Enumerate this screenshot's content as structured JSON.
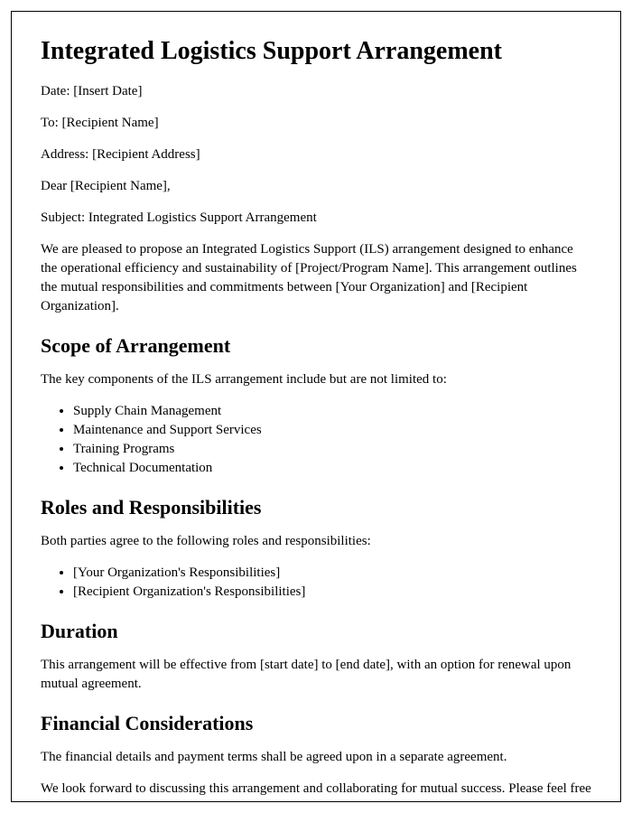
{
  "title": "Integrated Logistics Support Arrangement",
  "date_label": "Date: [Insert Date]",
  "to_label": "To: [Recipient Name]",
  "address_label": "Address: [Recipient Address]",
  "salutation": "Dear [Recipient Name],",
  "subject": "Subject: Integrated Logistics Support Arrangement",
  "intro": "We are pleased to propose an Integrated Logistics Support (ILS) arrangement designed to enhance the operational efficiency and sustainability of [Project/Program Name]. This arrangement outlines the mutual responsibilities and commitments between [Your Organization] and [Recipient Organization].",
  "sections": {
    "scope": {
      "heading": "Scope of Arrangement",
      "intro": "The key components of the ILS arrangement include but are not limited to:",
      "items": [
        "Supply Chain Management",
        "Maintenance and Support Services",
        "Training Programs",
        "Technical Documentation"
      ]
    },
    "roles": {
      "heading": "Roles and Responsibilities",
      "intro": "Both parties agree to the following roles and responsibilities:",
      "items": [
        "[Your Organization's Responsibilities]",
        "[Recipient Organization's Responsibilities]"
      ]
    },
    "duration": {
      "heading": "Duration",
      "body": "This arrangement will be effective from [start date] to [end date], with an option for renewal upon mutual agreement."
    },
    "financial": {
      "heading": "Financial Considerations",
      "body": "The financial details and payment terms shall be agreed upon in a separate agreement."
    }
  },
  "closing": "We look forward to discussing this arrangement and collaborating for mutual success. Please feel free to reach out to us at [Your Contact Information]."
}
